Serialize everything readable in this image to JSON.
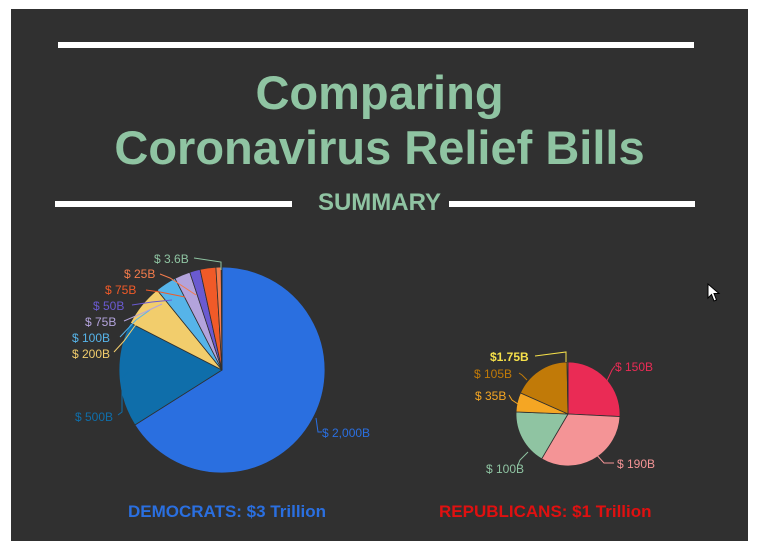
{
  "title": {
    "line1": "Comparing",
    "line2": "Coronavirus Relief Bills"
  },
  "section": "SUMMARY",
  "colors": {
    "background": "#303030",
    "title": "#8fc4a2",
    "democrats": "#2a6fe0",
    "republicans": "#e01010"
  },
  "democrats": {
    "caption": "DEMOCRATS:  $3 Trillion"
  },
  "republicans": {
    "caption": "REPUBLICANS:  $1 Trillion"
  },
  "chart_data": [
    {
      "type": "pie",
      "series_total_label": "DEMOCRATS:  $3 Trillion",
      "slices": [
        {
          "label": "$ 2,000B",
          "value": 2000,
          "color": "#2a6fe0"
        },
        {
          "label": "$ 500B",
          "value": 500,
          "color": "#0f6eaa"
        },
        {
          "label": "$ 200B",
          "value": 200,
          "color": "#f2cd6c"
        },
        {
          "label": "$ 100B",
          "value": 100,
          "color": "#56b4e9"
        },
        {
          "label": "$ 75B",
          "value": 75,
          "color": "#b3a3dc"
        },
        {
          "label": "$ 50B",
          "value": 50,
          "color": "#6a5ad1"
        },
        {
          "label": "$ 75B",
          "value": 75,
          "color": "#f05a28"
        },
        {
          "label": "$ 25B",
          "value": 25,
          "color": "#f47c4c"
        },
        {
          "label": "$ 3.6B",
          "value": 3.6,
          "color": "#8fc4a2"
        }
      ]
    },
    {
      "type": "pie",
      "series_total_label": "REPUBLICANS:  $1 Trillion",
      "slices": [
        {
          "label": "$ 150B",
          "value": 150,
          "color": "#ea2b55"
        },
        {
          "label": "$ 190B",
          "value": 190,
          "color": "#f49496"
        },
        {
          "label": "$ 100B",
          "value": 100,
          "color": "#8fc4a2"
        },
        {
          "label": "$ 35B",
          "value": 35,
          "color": "#f5a623"
        },
        {
          "label": "$ 105B",
          "value": 105,
          "color": "#c17a08"
        },
        {
          "label": "$1.75B",
          "value": 1.75,
          "color": "#f5e04a"
        }
      ]
    }
  ]
}
